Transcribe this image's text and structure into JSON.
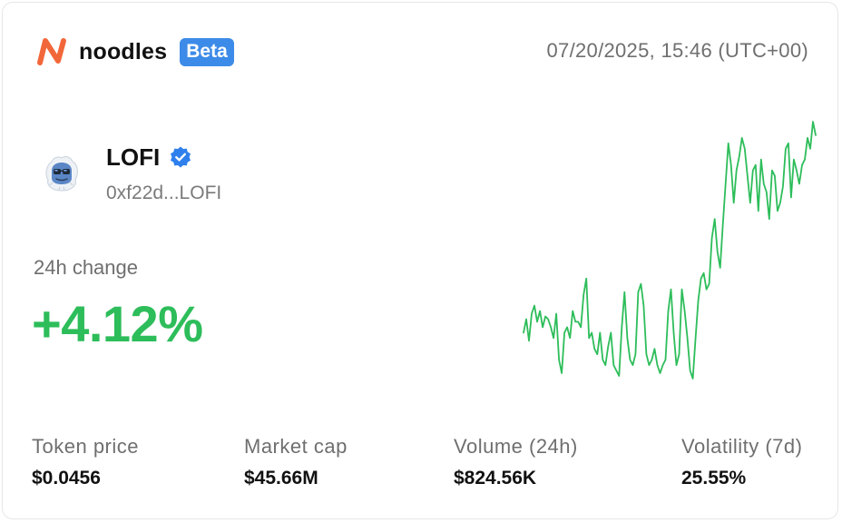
{
  "brand": {
    "name": "noodles",
    "badge": "Beta",
    "logo_icon": "noodles-logo-icon",
    "accent_color": "#f2673a",
    "badge_color": "#3d8be8"
  },
  "timestamp": "07/20/2025, 15:46 (UTC+00)",
  "token": {
    "name": "LOFI",
    "address": "0xf22d...LOFI",
    "avatar_icon": "lofi-yeti-avatar-icon",
    "verified_icon": "verified-badge-icon",
    "verified_color": "#2f80ed"
  },
  "change": {
    "label": "24h change",
    "value": "+4.12%",
    "color": "#2dbd5a"
  },
  "stats": [
    {
      "label": "Token price",
      "value": "$0.0456"
    },
    {
      "label": "Market cap",
      "value": "$45.66M"
    },
    {
      "label": "Volume (24h)",
      "value": "$824.56K"
    },
    {
      "label": "Volatility (7d)",
      "value": "25.55%"
    }
  ],
  "chart_data": {
    "type": "line",
    "title": "",
    "xlabel": "",
    "ylabel": "",
    "grid": false,
    "color": "#2dbd5a",
    "series": [
      {
        "values": [
          0.2,
          0.25,
          0.17,
          0.27,
          0.3,
          0.24,
          0.28,
          0.22,
          0.26,
          0.25,
          0.22,
          0.18,
          0.27,
          0.1,
          0.05,
          0.2,
          0.22,
          0.18,
          0.28,
          0.24,
          0.24,
          0.22,
          0.34,
          0.4,
          0.18,
          0.2,
          0.14,
          0.12,
          0.2,
          0.1,
          0.08,
          0.15,
          0.2,
          0.08,
          0.06,
          0.04,
          0.22,
          0.35,
          0.18,
          0.1,
          0.08,
          0.12,
          0.35,
          0.38,
          0.3,
          0.12,
          0.08,
          0.1,
          0.14,
          0.08,
          0.05,
          0.08,
          0.1,
          0.28,
          0.36,
          0.2,
          0.08,
          0.12,
          0.36,
          0.28,
          0.18,
          0.06,
          0.03,
          0.18,
          0.32,
          0.4,
          0.42,
          0.36,
          0.38,
          0.55,
          0.62,
          0.5,
          0.44,
          0.6,
          0.75,
          0.9,
          0.82,
          0.68,
          0.8,
          0.85,
          0.92,
          0.88,
          0.78,
          0.68,
          0.8,
          0.82,
          0.65,
          0.84,
          0.75,
          0.72,
          0.62,
          0.8,
          0.78,
          0.65,
          0.68,
          0.74,
          0.88,
          0.9,
          0.7,
          0.84,
          0.8,
          0.75,
          0.82,
          0.84,
          0.92,
          0.88,
          0.98,
          0.93
        ]
      }
    ]
  }
}
